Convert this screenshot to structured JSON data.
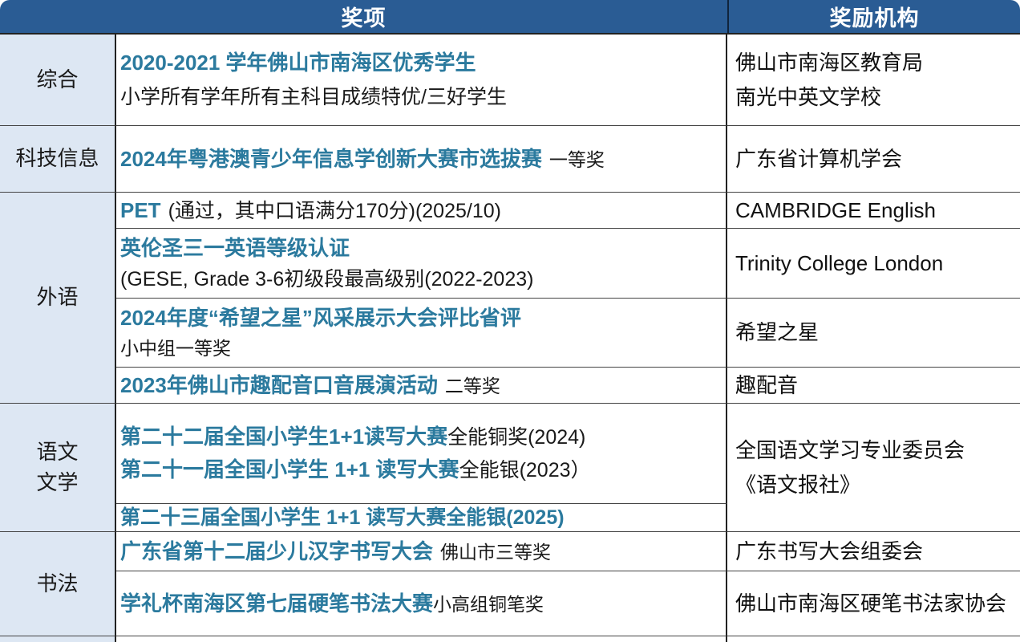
{
  "header": {
    "awards": "奖项",
    "org": "奖励机构"
  },
  "colors": {
    "header_bg": "#2a5c94",
    "accent_teal": "#2b7a9e",
    "category_bg": "#dde7f3",
    "border": "#444444"
  },
  "categories": {
    "zonghe": "综合",
    "keji": "科技信息",
    "waiyu": "外语",
    "yuwen_line1": "语文",
    "yuwen_line2": "文学",
    "shufa": "书法"
  },
  "rows": {
    "r1": {
      "title": "2020-2021 学年佛山市南海区优秀学生",
      "detail": "小学所有学年所有主科目成绩特优/三好学生",
      "org1": "佛山市南海区教育局",
      "org2": "南光中英文学校"
    },
    "r2": {
      "title": "2024年粤港澳青少年信息学创新大赛市选拔赛",
      "detail": "一等奖",
      "org": "广东省计算机学会"
    },
    "r3": {
      "title": "PET",
      "detail": "(通过，其中口语满分170分)(2025/10)",
      "org": "CAMBRIDGE English"
    },
    "r4": {
      "title": "英伦圣三一英语等级认证",
      "detail": "(GESE, Grade 3-6初级段最高级别(2022-2023)",
      "org": "Trinity College London"
    },
    "r5": {
      "title": "2024年度“希望之星”风采展示大会评比省评",
      "detail": "小中组一等奖",
      "org": "希望之星"
    },
    "r6": {
      "title": "2023年佛山市趣配音口音展演活动",
      "detail": "二等奖",
      "org": "趣配音"
    },
    "r7a": {
      "title": "第二十二届全国小学生1+1读写大赛",
      "detail": "全能铜奖(2024)"
    },
    "r7b": {
      "title": "第二十一届全国小学生 1+1 读写大赛",
      "detail": "全能银(2023）"
    },
    "r7_org1": "全国语文学习专业委员会",
    "r7_org2": "《语文报社》",
    "r8": {
      "title": "第二十三届全国小学生 1+1 读写大赛全能银(2025)"
    },
    "r9": {
      "title": "广东省第十二届少儿汉字书写大会",
      "detail": "佛山市三等奖",
      "org": "广东书写大会组委会"
    },
    "r10": {
      "title": "学礼杯南海区第七届硬笔书法大赛",
      "detail": "小高组铜笔奖",
      "org": "佛山市南海区硬笔书法家协会"
    }
  }
}
